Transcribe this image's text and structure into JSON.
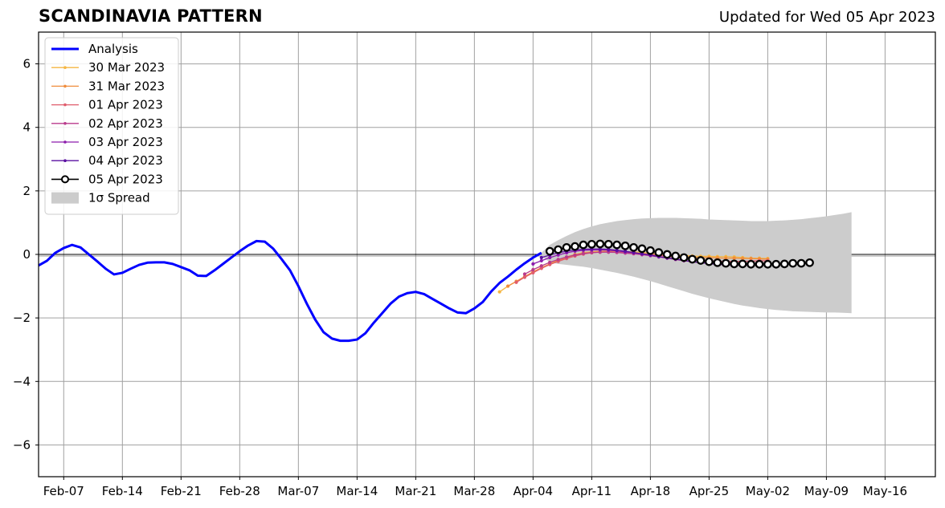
{
  "header": {
    "title": "SCANDINAVIA PATTERN",
    "updated": "Updated for Wed 05 Apr 2023"
  },
  "chart_data": {
    "type": "line",
    "title": "SCANDINAVIA PATTERN",
    "subtitle": "Updated for Wed 05 Apr 2023",
    "xlabel": "",
    "ylabel": "",
    "x_ticks": [
      "Feb-07",
      "Feb-14",
      "Feb-21",
      "Feb-28",
      "Mar-07",
      "Mar-14",
      "Mar-21",
      "Mar-28",
      "Apr-04",
      "Apr-11",
      "Apr-18",
      "Apr-25",
      "May-02",
      "May-09",
      "May-16"
    ],
    "x_range": [
      "2023-02-04",
      "2023-05-22"
    ],
    "ylim": [
      -7,
      7
    ],
    "y_ticks": [
      -6,
      -4,
      -2,
      0,
      2,
      4,
      6
    ],
    "grid": true,
    "legend_position": "top-left",
    "analysis": {
      "name": "Analysis",
      "color": "#0000ff",
      "x": [
        "2023-02-04",
        "2023-02-05",
        "2023-02-06",
        "2023-02-07",
        "2023-02-08",
        "2023-02-09",
        "2023-02-10",
        "2023-02-11",
        "2023-02-12",
        "2023-02-13",
        "2023-02-14",
        "2023-02-15",
        "2023-02-16",
        "2023-02-17",
        "2023-02-18",
        "2023-02-19",
        "2023-02-20",
        "2023-02-21",
        "2023-02-22",
        "2023-02-23",
        "2023-02-24",
        "2023-02-25",
        "2023-02-26",
        "2023-02-27",
        "2023-02-28",
        "2023-03-01",
        "2023-03-02",
        "2023-03-03",
        "2023-03-04",
        "2023-03-05",
        "2023-03-06",
        "2023-03-07",
        "2023-03-08",
        "2023-03-09",
        "2023-03-10",
        "2023-03-11",
        "2023-03-12",
        "2023-03-13",
        "2023-03-14",
        "2023-03-15",
        "2023-03-16",
        "2023-03-17",
        "2023-03-18",
        "2023-03-19",
        "2023-03-20",
        "2023-03-21",
        "2023-03-22",
        "2023-03-23",
        "2023-03-24",
        "2023-03-25",
        "2023-03-26",
        "2023-03-27",
        "2023-03-28",
        "2023-03-29",
        "2023-03-30",
        "2023-03-31",
        "2023-04-01",
        "2023-04-02",
        "2023-04-03",
        "2023-04-04",
        "2023-04-05"
      ],
      "values": [
        -0.35,
        -0.2,
        0.05,
        0.2,
        0.3,
        0.22,
        0.0,
        -0.22,
        -0.45,
        -0.63,
        -0.58,
        -0.45,
        -0.33,
        -0.26,
        -0.25,
        -0.25,
        -0.3,
        -0.4,
        -0.5,
        -0.67,
        -0.68,
        -0.5,
        -0.3,
        -0.1,
        0.1,
        0.28,
        0.42,
        0.4,
        0.18,
        -0.15,
        -0.5,
        -1.0,
        -1.55,
        -2.05,
        -2.45,
        -2.65,
        -2.72,
        -2.72,
        -2.68,
        -2.48,
        -2.15,
        -1.85,
        -1.55,
        -1.33,
        -1.22,
        -1.18,
        -1.25,
        -1.4,
        -1.55,
        -1.7,
        -1.83,
        -1.85,
        -1.7,
        -1.5,
        -1.17,
        -0.9,
        -0.7,
        -0.48,
        -0.28,
        -0.1,
        0.05
      ]
    },
    "series": [
      {
        "name": "30 Mar 2023",
        "color": "#f5b642",
        "start": "2023-03-31",
        "values": [
          -1.18,
          -1.0,
          -0.85,
          -0.7,
          -0.55,
          -0.42,
          -0.3,
          -0.18,
          -0.08,
          0.0,
          0.06,
          0.08,
          0.1,
          0.1,
          0.1,
          0.08,
          0.08,
          0.06,
          0.04,
          0.02,
          0.0,
          -0.02,
          -0.03,
          -0.05,
          -0.06,
          -0.06,
          -0.07,
          -0.07,
          -0.08,
          -0.1,
          -0.12,
          -0.12,
          -0.13
        ]
      },
      {
        "name": "31 Mar 2023",
        "color": "#f08c3c",
        "start": "2023-04-01",
        "values": [
          -1.0,
          -0.85,
          -0.7,
          -0.55,
          -0.42,
          -0.3,
          -0.2,
          -0.1,
          -0.02,
          0.03,
          0.06,
          0.08,
          0.08,
          0.08,
          0.06,
          0.04,
          0.02,
          0.0,
          -0.02,
          -0.04,
          -0.06,
          -0.08,
          -0.09,
          -0.1,
          -0.1,
          -0.11,
          -0.12,
          -0.12,
          -0.13,
          -0.13,
          -0.14,
          -0.15
        ]
      },
      {
        "name": "01 Apr 2023",
        "color": "#e05c6c",
        "start": "2023-04-02",
        "values": [
          -0.88,
          -0.72,
          -0.58,
          -0.44,
          -0.32,
          -0.22,
          -0.13,
          -0.05,
          0.01,
          0.05,
          0.07,
          0.08,
          0.07,
          0.06,
          0.04,
          0.02,
          0.0,
          -0.03,
          -0.06,
          -0.09,
          -0.12,
          -0.15,
          -0.18,
          -0.2,
          -0.22,
          -0.22,
          -0.22,
          -0.22,
          -0.21,
          -0.2,
          -0.2
        ]
      },
      {
        "name": "02 Apr 2023",
        "color": "#b93a8c",
        "start": "2023-04-03",
        "values": [
          -0.62,
          -0.48,
          -0.36,
          -0.25,
          -0.16,
          -0.08,
          -0.02,
          0.03,
          0.06,
          0.07,
          0.07,
          0.06,
          0.04,
          0.02,
          -0.01,
          -0.04,
          -0.08,
          -0.12,
          -0.16,
          -0.2,
          -0.23,
          -0.26,
          -0.28,
          -0.3,
          -0.31,
          -0.31,
          -0.3,
          -0.3,
          -0.29,
          -0.28
        ]
      },
      {
        "name": "03 Apr 2023",
        "color": "#8c1cac",
        "start": "2023-04-04",
        "values": [
          -0.3,
          -0.2,
          -0.1,
          -0.02,
          0.05,
          0.1,
          0.13,
          0.14,
          0.14,
          0.13,
          0.11,
          0.08,
          0.05,
          0.01,
          -0.03,
          -0.07,
          -0.11,
          -0.15,
          -0.19,
          -0.23,
          -0.26,
          -0.29,
          -0.31,
          -0.33,
          -0.34,
          -0.34,
          -0.34,
          -0.33,
          -0.32
        ]
      },
      {
        "name": "04 Apr 2023",
        "color": "#5a0fa0",
        "start": "2023-04-05",
        "values": [
          -0.1,
          -0.02,
          0.05,
          0.1,
          0.14,
          0.16,
          0.17,
          0.17,
          0.16,
          0.13,
          0.1,
          0.06,
          0.02,
          -0.02,
          -0.07,
          -0.11,
          -0.15,
          -0.19,
          -0.23,
          -0.26,
          -0.29,
          -0.31,
          -0.32,
          -0.33,
          -0.33,
          -0.33,
          -0.32,
          -0.31
        ]
      }
    ],
    "forecast": {
      "name": "05 Apr 2023",
      "color": "#000000",
      "start": "2023-04-06",
      "values": [
        0.1,
        0.15,
        0.22,
        0.25,
        0.3,
        0.32,
        0.33,
        0.32,
        0.3,
        0.27,
        0.22,
        0.18,
        0.12,
        0.06,
        0.0,
        -0.05,
        -0.1,
        -0.15,
        -0.19,
        -0.23,
        -0.26,
        -0.28,
        -0.3,
        -0.3,
        -0.31,
        -0.31,
        -0.31,
        -0.31,
        -0.3,
        -0.28,
        -0.28,
        -0.26
      ]
    },
    "spread": {
      "name": "1σ Spread",
      "color": "#cccccc",
      "start": "2023-04-05",
      "upper": [
        0.05,
        0.3,
        0.45,
        0.58,
        0.7,
        0.8,
        0.88,
        0.95,
        1.0,
        1.05,
        1.08,
        1.11,
        1.13,
        1.14,
        1.15,
        1.15,
        1.15,
        1.14,
        1.13,
        1.12,
        1.1,
        1.09,
        1.08,
        1.07,
        1.06,
        1.05,
        1.05,
        1.05,
        1.06,
        1.07,
        1.09,
        1.11,
        1.14,
        1.17,
        1.2,
        1.24,
        1.28,
        1.33
      ],
      "lower": [
        -0.05,
        -0.25,
        -0.3,
        -0.33,
        -0.36,
        -0.39,
        -0.43,
        -0.48,
        -0.53,
        -0.58,
        -0.64,
        -0.7,
        -0.77,
        -0.84,
        -0.92,
        -1.0,
        -1.08,
        -1.16,
        -1.24,
        -1.31,
        -1.38,
        -1.44,
        -1.5,
        -1.56,
        -1.61,
        -1.65,
        -1.69,
        -1.72,
        -1.75,
        -1.77,
        -1.79,
        -1.8,
        -1.81,
        -1.82,
        -1.83,
        -1.83,
        -1.84,
        -1.85
      ]
    }
  }
}
